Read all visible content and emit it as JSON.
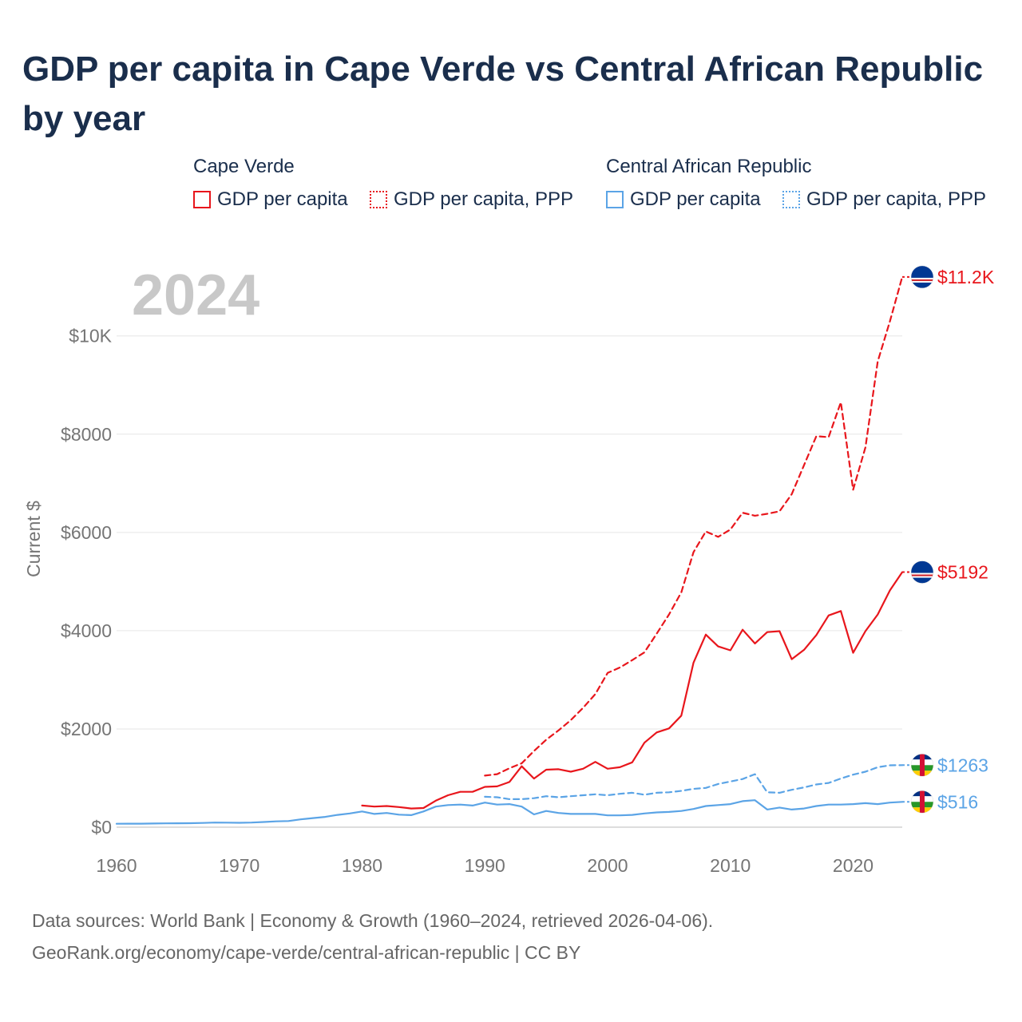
{
  "title": "GDP per capita in Cape Verde vs Central African Republic by year",
  "legend": {
    "groups": [
      {
        "name": "Cape Verde",
        "items": [
          {
            "label": "GDP per capita",
            "style": "solid",
            "color": "#e8161c"
          },
          {
            "label": "GDP per capita, PPP",
            "style": "dotted",
            "color": "#e8161c"
          }
        ]
      },
      {
        "name": "Central African Republic",
        "items": [
          {
            "label": "GDP per capita",
            "style": "solid",
            "color": "#5ba4e6"
          },
          {
            "label": "GDP per capita, PPP",
            "style": "dotted",
            "color": "#5ba4e6"
          }
        ]
      }
    ]
  },
  "colors": {
    "cape_verde": "#e8161c",
    "car": "#5ba4e6",
    "year_watermark": "#c8c8c8"
  },
  "footer": {
    "line1": "Data sources: World Bank | Economy & Growth (1960–2024, retrieved 2026-04-06).",
    "line2": "GeoRank.org/economy/cape-verde/central-african-republic | CC BY"
  },
  "chart_data": {
    "type": "line",
    "year_label": "2024",
    "ylabel": "Current $",
    "xlim": [
      1960,
      2024
    ],
    "ylim": [
      0,
      11800
    ],
    "x_ticks": [
      1960,
      1970,
      1980,
      1990,
      2000,
      2010,
      2020
    ],
    "x_tick_labels": [
      "1960",
      "1970",
      "1980",
      "1990",
      "2000",
      "2010",
      "2020"
    ],
    "y_ticks": [
      0,
      2000,
      4000,
      6000,
      8000,
      10000
    ],
    "y_tick_labels": [
      "$0",
      "$2000",
      "$4000",
      "$6000",
      "$8000",
      "$10K"
    ],
    "series": [
      {
        "name": "Cape Verde GDP per capita",
        "country": "Cape Verde",
        "flag": "cape-verde-flag-icon",
        "color": "#e8161c",
        "dash": "solid",
        "end_label": "$5192",
        "x": [
          1980,
          1981,
          1982,
          1983,
          1984,
          1985,
          1986,
          1987,
          1988,
          1989,
          1990,
          1991,
          1992,
          1993,
          1994,
          1995,
          1996,
          1997,
          1998,
          1999,
          2000,
          2001,
          2002,
          2003,
          2004,
          2005,
          2006,
          2007,
          2008,
          2009,
          2010,
          2011,
          2012,
          2013,
          2014,
          2015,
          2016,
          2017,
          2018,
          2019,
          2020,
          2021,
          2022,
          2023,
          2024
        ],
        "y": [
          440,
          420,
          430,
          410,
          380,
          390,
          540,
          650,
          720,
          720,
          820,
          830,
          920,
          1240,
          990,
          1170,
          1180,
          1130,
          1190,
          1330,
          1190,
          1220,
          1320,
          1720,
          1930,
          2010,
          2270,
          3350,
          3920,
          3680,
          3600,
          4020,
          3740,
          3970,
          3990,
          3420,
          3610,
          3910,
          4310,
          4400,
          3550,
          3990,
          4330,
          4820,
          5192
        ]
      },
      {
        "name": "Cape Verde GDP per capita, PPP",
        "country": "Cape Verde",
        "flag": "cape-verde-flag-icon",
        "color": "#e8161c",
        "dash": "dashed",
        "end_label": "$11.2K",
        "x": [
          1990,
          1991,
          1992,
          1993,
          1994,
          1995,
          1996,
          1997,
          1998,
          1999,
          2000,
          2001,
          2002,
          2003,
          2004,
          2005,
          2006,
          2007,
          2008,
          2009,
          2010,
          2011,
          2012,
          2013,
          2014,
          2015,
          2016,
          2017,
          2018,
          2019,
          2020,
          2021,
          2022,
          2023,
          2024
        ],
        "y": [
          1050,
          1080,
          1200,
          1300,
          1550,
          1780,
          1970,
          2180,
          2430,
          2710,
          3140,
          3250,
          3400,
          3560,
          3940,
          4330,
          4780,
          5600,
          6020,
          5910,
          6060,
          6400,
          6340,
          6380,
          6430,
          6780,
          7370,
          7960,
          7940,
          8650,
          6870,
          7730,
          9480,
          10300,
          11200
        ]
      },
      {
        "name": "Central African Republic GDP per capita",
        "country": "Central African Republic",
        "flag": "car-flag-icon",
        "color": "#5ba4e6",
        "dash": "solid",
        "end_label": "$516",
        "x": [
          1960,
          1961,
          1962,
          1963,
          1964,
          1965,
          1966,
          1967,
          1968,
          1969,
          1970,
          1971,
          1972,
          1973,
          1974,
          1975,
          1976,
          1977,
          1978,
          1979,
          1980,
          1981,
          1982,
          1983,
          1984,
          1985,
          1986,
          1987,
          1988,
          1989,
          1990,
          1991,
          1992,
          1993,
          1994,
          1995,
          1996,
          1997,
          1998,
          1999,
          2000,
          2001,
          2002,
          2003,
          2004,
          2005,
          2006,
          2007,
          2008,
          2009,
          2010,
          2011,
          2012,
          2013,
          2014,
          2015,
          2016,
          2017,
          2018,
          2019,
          2020,
          2021,
          2022,
          2023,
          2024
        ],
        "y": [
          70,
          72,
          72,
          74,
          78,
          80,
          82,
          86,
          94,
          92,
          90,
          94,
          105,
          118,
          125,
          160,
          185,
          210,
          250,
          280,
          320,
          270,
          290,
          255,
          245,
          320,
          420,
          450,
          460,
          440,
          500,
          460,
          470,
          420,
          260,
          330,
          290,
          270,
          270,
          270,
          240,
          240,
          250,
          280,
          300,
          310,
          330,
          370,
          430,
          450,
          470,
          530,
          550,
          360,
          400,
          360,
          380,
          430,
          460,
          460,
          470,
          490,
          470,
          500,
          516
        ]
      },
      {
        "name": "Central African Republic GDP per capita, PPP",
        "country": "Central African Republic",
        "flag": "car-flag-icon",
        "color": "#5ba4e6",
        "dash": "dashed",
        "end_label": "$1263",
        "x": [
          1990,
          1991,
          1992,
          1993,
          1994,
          1995,
          1996,
          1997,
          1998,
          1999,
          2000,
          2001,
          2002,
          2003,
          2004,
          2005,
          2006,
          2007,
          2008,
          2009,
          2010,
          2011,
          2012,
          2013,
          2014,
          2015,
          2016,
          2017,
          2018,
          2019,
          2020,
          2021,
          2022,
          2023,
          2024
        ],
        "y": [
          620,
          610,
          570,
          570,
          590,
          630,
          610,
          630,
          650,
          670,
          650,
          680,
          700,
          660,
          700,
          710,
          740,
          780,
          800,
          880,
          930,
          980,
          1080,
          710,
          700,
          760,
          810,
          870,
          900,
          990,
          1070,
          1130,
          1220,
          1260,
          1263
        ]
      }
    ]
  }
}
